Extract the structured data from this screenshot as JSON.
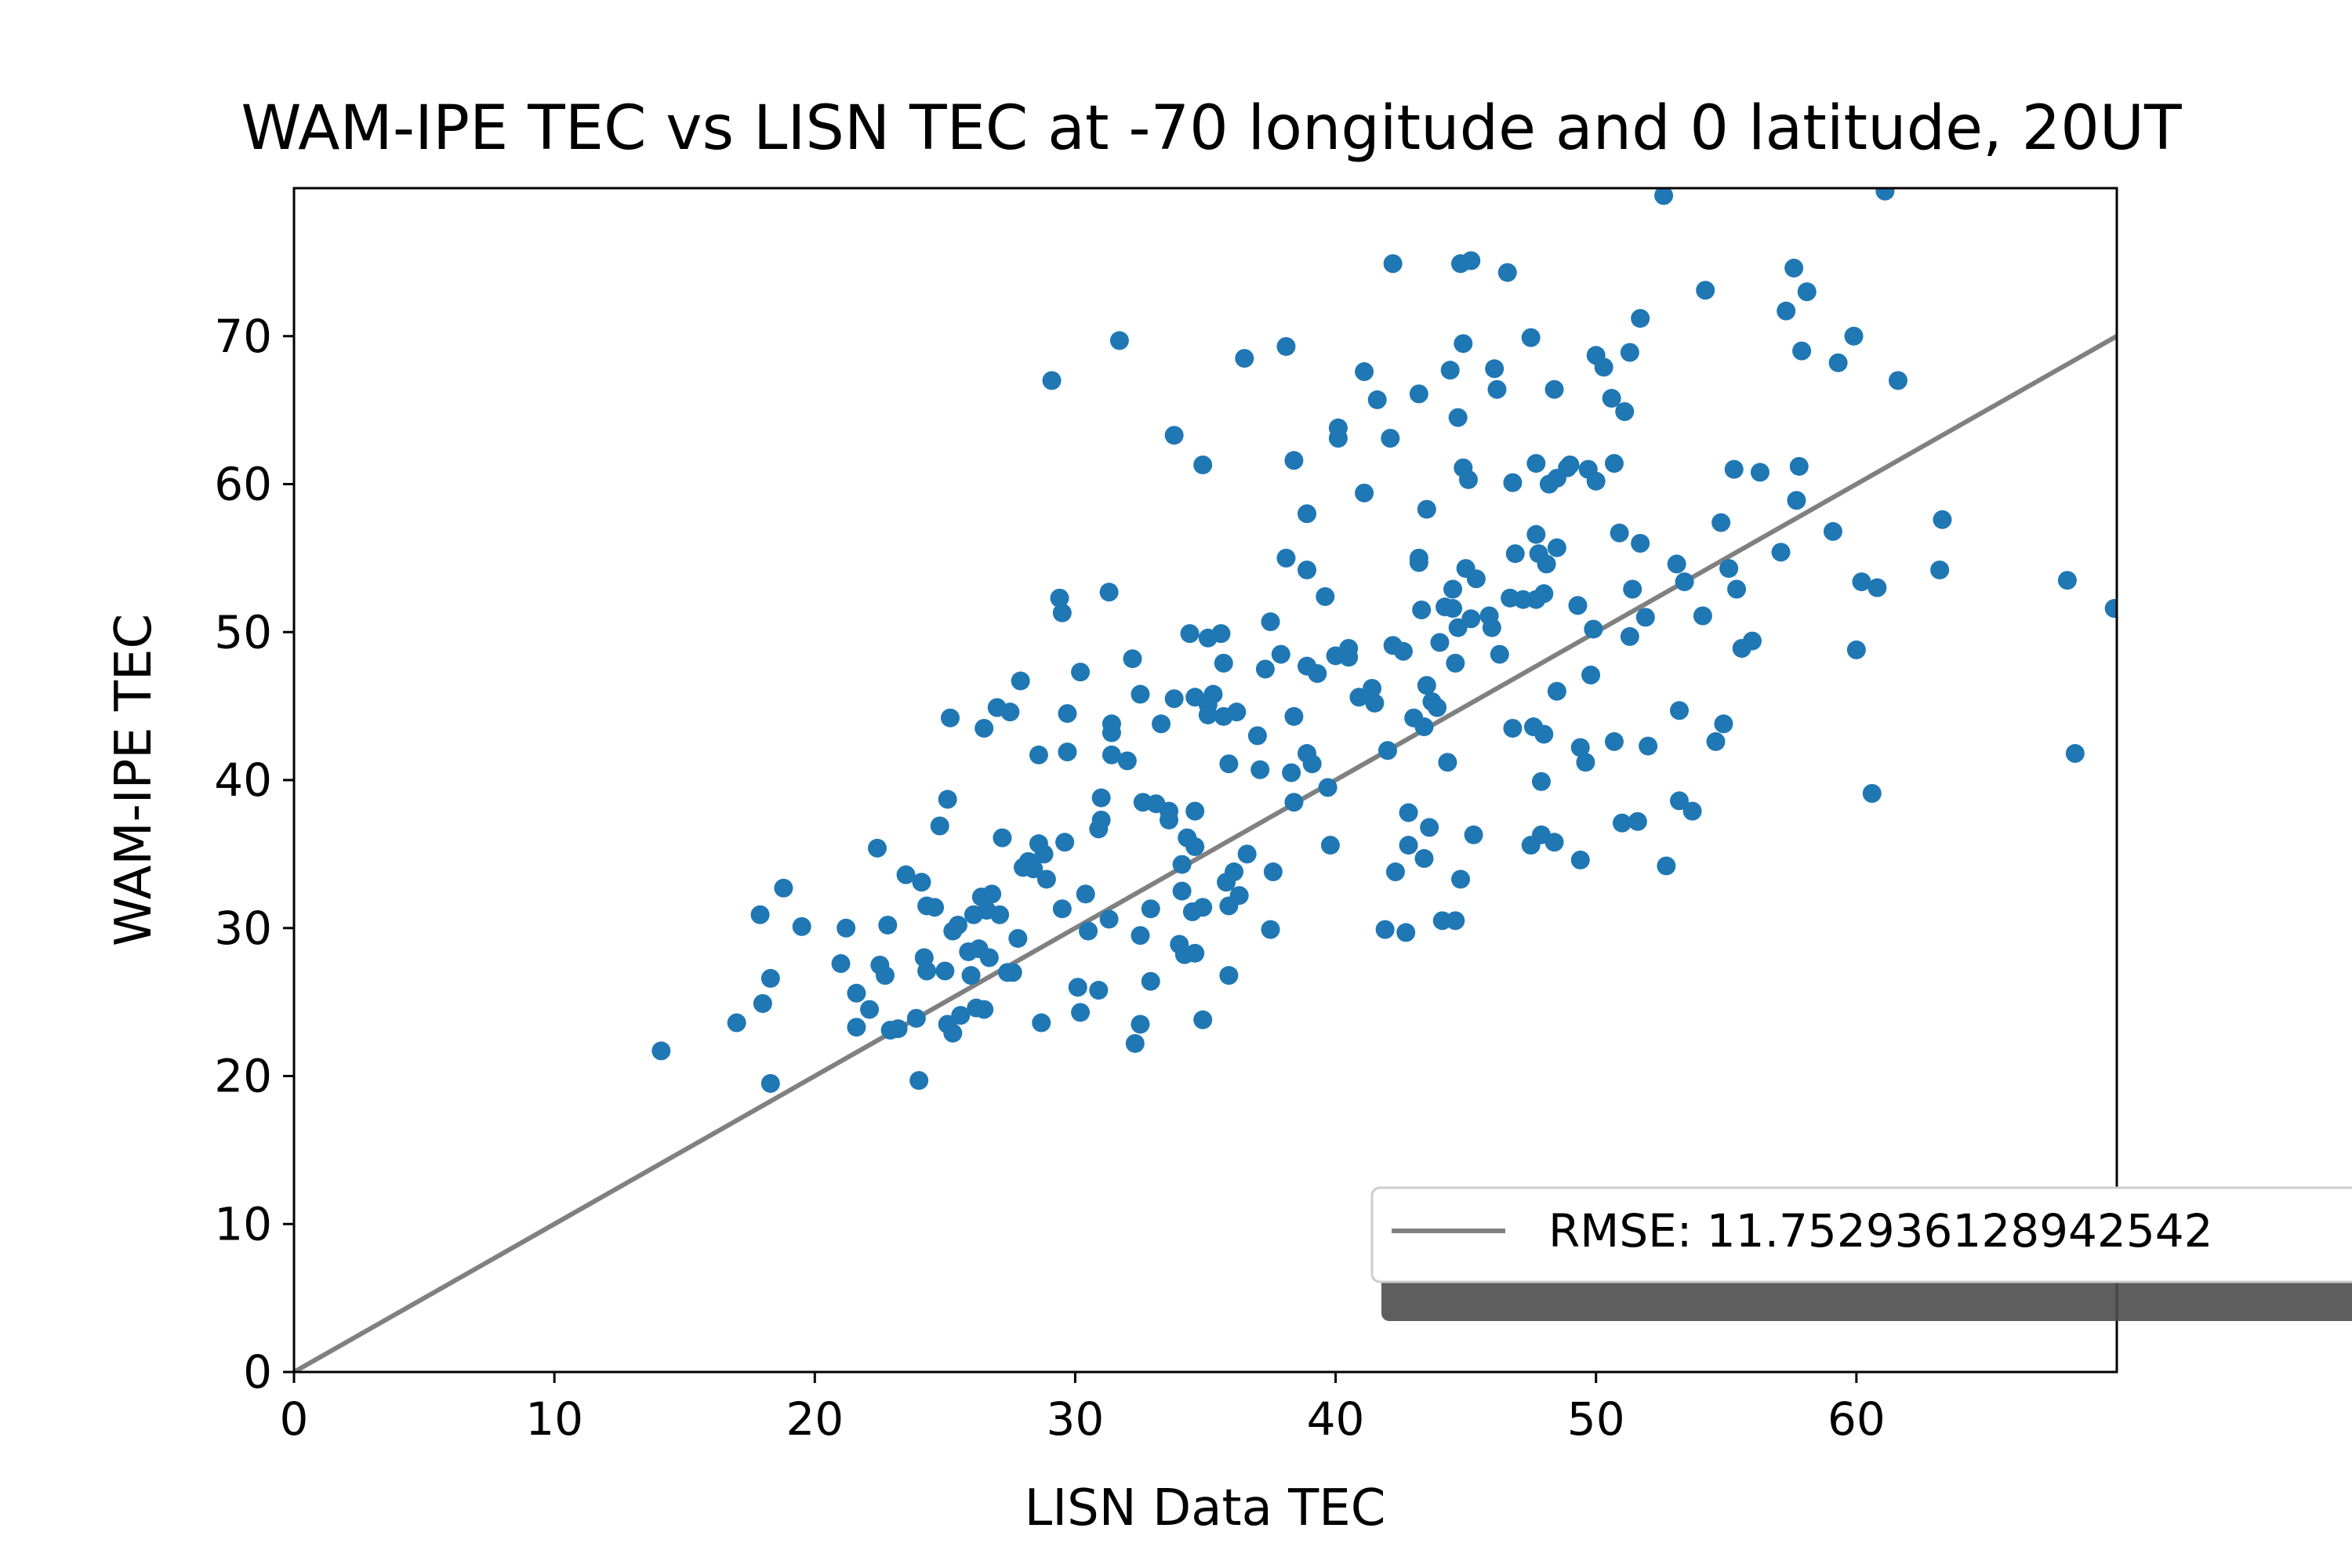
{
  "chart_data": {
    "type": "scatter",
    "title": "WAM-IPE TEC vs LISN TEC at -70 longitude and 0 latitude, 20UT",
    "xlabel": "LISN Data TEC",
    "ylabel": "WAM-IPE TEC",
    "xlim": [
      0,
      70
    ],
    "ylim": [
      0,
      80
    ],
    "xticks": [
      "0",
      "10",
      "20",
      "30",
      "40",
      "50",
      "60"
    ],
    "yticks": [
      "0",
      "10",
      "20",
      "30",
      "40",
      "50",
      "60",
      "70"
    ],
    "grid": false,
    "legend_position": "lower-right",
    "legend": {
      "label": "RMSE: 11.752936128942542"
    },
    "reference_line": {
      "name": "RMSE: 11.752936128942542",
      "x": [
        0,
        70
      ],
      "y": [
        0,
        70
      ],
      "color": "#808080"
    },
    "point_color": "#1f77b4",
    "points": [
      [
        14.1,
        21.7
      ],
      [
        17.0,
        23.6
      ],
      [
        17.9,
        30.9
      ],
      [
        18.0,
        24.9
      ],
      [
        18.3,
        26.6
      ],
      [
        18.3,
        19.5
      ],
      [
        18.8,
        32.7
      ],
      [
        19.5,
        30.1
      ],
      [
        21.0,
        27.6
      ],
      [
        21.2,
        30.0
      ],
      [
        21.6,
        25.6
      ],
      [
        21.6,
        23.3
      ],
      [
        22.1,
        24.5
      ],
      [
        22.4,
        35.4
      ],
      [
        22.5,
        27.5
      ],
      [
        22.7,
        26.8
      ],
      [
        22.8,
        30.2
      ],
      [
        22.9,
        23.1
      ],
      [
        23.2,
        23.2
      ],
      [
        23.5,
        33.6
      ],
      [
        23.9,
        23.9
      ],
      [
        24.0,
        19.7
      ],
      [
        24.1,
        33.1
      ],
      [
        24.2,
        28.0
      ],
      [
        24.3,
        27.1
      ],
      [
        24.3,
        31.5
      ],
      [
        24.6,
        31.4
      ],
      [
        24.8,
        36.9
      ],
      [
        25.0,
        27.1
      ],
      [
        25.1,
        23.5
      ],
      [
        25.1,
        38.7
      ],
      [
        25.2,
        44.2
      ],
      [
        25.3,
        29.8
      ],
      [
        25.3,
        22.9
      ],
      [
        25.5,
        30.2
      ],
      [
        25.6,
        24.1
      ],
      [
        25.9,
        28.4
      ],
      [
        26.0,
        26.8
      ],
      [
        26.1,
        30.9
      ],
      [
        26.2,
        24.6
      ],
      [
        26.3,
        28.6
      ],
      [
        26.4,
        32.1
      ],
      [
        26.5,
        24.5
      ],
      [
        26.5,
        43.5
      ],
      [
        26.6,
        31.2
      ],
      [
        26.7,
        28.0
      ],
      [
        26.8,
        32.3
      ],
      [
        27.0,
        44.9
      ],
      [
        27.1,
        30.9
      ],
      [
        27.2,
        36.1
      ],
      [
        27.4,
        27.0
      ],
      [
        27.5,
        44.6
      ],
      [
        27.6,
        27.0
      ],
      [
        27.8,
        29.3
      ],
      [
        27.9,
        46.7
      ],
      [
        28.0,
        34.1
      ],
      [
        28.2,
        34.5
      ],
      [
        28.4,
        34.0
      ],
      [
        28.6,
        35.7
      ],
      [
        28.6,
        41.7
      ],
      [
        28.7,
        23.6
      ],
      [
        28.8,
        35.0
      ],
      [
        28.9,
        33.3
      ],
      [
        29.1,
        67.0
      ],
      [
        29.4,
        52.3
      ],
      [
        29.5,
        51.3
      ],
      [
        29.5,
        31.3
      ],
      [
        29.6,
        35.8
      ],
      [
        29.7,
        41.9
      ],
      [
        29.7,
        44.5
      ],
      [
        30.1,
        26.0
      ],
      [
        30.2,
        47.3
      ],
      [
        30.2,
        24.3
      ],
      [
        30.4,
        32.3
      ],
      [
        30.5,
        29.8
      ],
      [
        30.9,
        25.8
      ],
      [
        30.9,
        36.7
      ],
      [
        31.0,
        38.8
      ],
      [
        31.0,
        37.3
      ],
      [
        31.3,
        30.6
      ],
      [
        31.3,
        52.7
      ],
      [
        31.4,
        43.8
      ],
      [
        31.4,
        41.7
      ],
      [
        31.4,
        43.2
      ],
      [
        31.7,
        69.7
      ],
      [
        32.0,
        41.3
      ],
      [
        32.2,
        48.2
      ],
      [
        32.3,
        22.2
      ],
      [
        32.5,
        23.5
      ],
      [
        32.5,
        29.5
      ],
      [
        32.5,
        45.8
      ],
      [
        32.6,
        38.5
      ],
      [
        32.9,
        31.3
      ],
      [
        32.9,
        26.4
      ],
      [
        33.1,
        38.4
      ],
      [
        33.3,
        43.8
      ],
      [
        33.6,
        37.9
      ],
      [
        33.6,
        37.3
      ],
      [
        33.8,
        45.5
      ],
      [
        33.8,
        63.3
      ],
      [
        34.0,
        28.9
      ],
      [
        34.1,
        34.3
      ],
      [
        34.1,
        32.5
      ],
      [
        34.2,
        28.2
      ],
      [
        34.3,
        36.1
      ],
      [
        34.4,
        49.9
      ],
      [
        34.5,
        31.1
      ],
      [
        34.6,
        35.5
      ],
      [
        34.6,
        28.3
      ],
      [
        34.6,
        37.9
      ],
      [
        34.6,
        45.6
      ],
      [
        34.9,
        61.3
      ],
      [
        34.9,
        31.4
      ],
      [
        34.9,
        23.8
      ],
      [
        35.1,
        44.4
      ],
      [
        35.1,
        45.1
      ],
      [
        35.1,
        49.6
      ],
      [
        35.3,
        45.8
      ],
      [
        35.6,
        49.9
      ],
      [
        35.7,
        44.3
      ],
      [
        35.7,
        47.9
      ],
      [
        35.8,
        33.1
      ],
      [
        35.9,
        26.8
      ],
      [
        35.9,
        41.1
      ],
      [
        35.9,
        31.5
      ],
      [
        36.1,
        33.8
      ],
      [
        36.2,
        44.6
      ],
      [
        36.3,
        32.2
      ],
      [
        36.5,
        68.5
      ],
      [
        36.6,
        35.0
      ],
      [
        37.0,
        43.0
      ],
      [
        37.1,
        40.7
      ],
      [
        37.3,
        47.5
      ],
      [
        37.5,
        29.9
      ],
      [
        37.5,
        50.7
      ],
      [
        37.6,
        33.8
      ],
      [
        37.9,
        48.5
      ],
      [
        38.1,
        55.0
      ],
      [
        38.1,
        69.3
      ],
      [
        38.3,
        40.5
      ],
      [
        38.4,
        38.5
      ],
      [
        38.4,
        44.3
      ],
      [
        38.4,
        61.6
      ],
      [
        38.9,
        47.7
      ],
      [
        38.9,
        54.2
      ],
      [
        38.9,
        58.0
      ],
      [
        38.9,
        41.8
      ],
      [
        39.1,
        41.1
      ],
      [
        39.3,
        47.2
      ],
      [
        39.6,
        52.4
      ],
      [
        39.7,
        39.5
      ],
      [
        39.8,
        35.6
      ],
      [
        40.0,
        48.4
      ],
      [
        40.1,
        63.8
      ],
      [
        40.1,
        63.1
      ],
      [
        40.5,
        48.9
      ],
      [
        40.5,
        48.3
      ],
      [
        40.9,
        45.6
      ],
      [
        41.1,
        59.4
      ],
      [
        41.1,
        67.6
      ],
      [
        41.4,
        46.2
      ],
      [
        41.5,
        45.2
      ],
      [
        41.6,
        65.7
      ],
      [
        41.9,
        29.9
      ],
      [
        42.0,
        42.0
      ],
      [
        42.1,
        63.1
      ],
      [
        42.2,
        49.1
      ],
      [
        42.2,
        74.9
      ],
      [
        42.3,
        33.8
      ],
      [
        42.6,
        48.7
      ],
      [
        42.7,
        29.7
      ],
      [
        42.8,
        37.8
      ],
      [
        42.8,
        35.6
      ],
      [
        43.0,
        44.2
      ],
      [
        43.2,
        66.1
      ],
      [
        43.2,
        55.0
      ],
      [
        43.2,
        54.7
      ],
      [
        43.3,
        51.5
      ],
      [
        43.4,
        34.7
      ],
      [
        43.4,
        43.6
      ],
      [
        43.5,
        58.3
      ],
      [
        43.5,
        46.4
      ],
      [
        43.6,
        36.8
      ],
      [
        43.7,
        45.3
      ],
      [
        43.9,
        44.9
      ],
      [
        44.0,
        49.3
      ],
      [
        44.1,
        30.5
      ],
      [
        44.2,
        51.7
      ],
      [
        44.3,
        41.2
      ],
      [
        44.4,
        67.7
      ],
      [
        44.5,
        51.6
      ],
      [
        44.5,
        52.9
      ],
      [
        44.6,
        47.9
      ],
      [
        44.6,
        30.5
      ],
      [
        44.7,
        50.3
      ],
      [
        44.7,
        64.5
      ],
      [
        44.8,
        74.9
      ],
      [
        44.8,
        33.3
      ],
      [
        44.9,
        69.5
      ],
      [
        44.9,
        61.1
      ],
      [
        45.0,
        54.3
      ],
      [
        45.1,
        60.3
      ],
      [
        45.2,
        75.1
      ],
      [
        45.2,
        50.9
      ],
      [
        45.3,
        36.3
      ],
      [
        45.4,
        53.6
      ],
      [
        45.9,
        51.1
      ],
      [
        46.0,
        50.3
      ],
      [
        46.1,
        67.8
      ],
      [
        46.2,
        66.4
      ],
      [
        46.3,
        48.5
      ],
      [
        46.6,
        74.3
      ],
      [
        46.7,
        52.3
      ],
      [
        46.8,
        43.5
      ],
      [
        46.8,
        60.1
      ],
      [
        46.9,
        55.3
      ],
      [
        47.2,
        52.2
      ],
      [
        47.5,
        69.9
      ],
      [
        47.5,
        35.6
      ],
      [
        47.6,
        43.6
      ],
      [
        47.7,
        61.4
      ],
      [
        47.7,
        56.6
      ],
      [
        47.7,
        52.2
      ],
      [
        47.8,
        55.3
      ],
      [
        47.9,
        39.9
      ],
      [
        47.9,
        36.3
      ],
      [
        48.0,
        43.1
      ],
      [
        48.0,
        52.6
      ],
      [
        48.1,
        54.6
      ],
      [
        48.2,
        60.0
      ],
      [
        48.4,
        35.8
      ],
      [
        48.4,
        66.4
      ],
      [
        48.5,
        46.0
      ],
      [
        48.5,
        55.7
      ],
      [
        48.5,
        60.4
      ],
      [
        48.9,
        61.1
      ],
      [
        49.0,
        61.3
      ],
      [
        49.3,
        51.8
      ],
      [
        49.4,
        42.2
      ],
      [
        49.4,
        34.6
      ],
      [
        49.6,
        41.2
      ],
      [
        49.7,
        61.0
      ],
      [
        49.8,
        47.1
      ],
      [
        49.9,
        50.2
      ],
      [
        50.0,
        68.7
      ],
      [
        50.0,
        60.2
      ],
      [
        50.3,
        67.9
      ],
      [
        50.6,
        65.8
      ],
      [
        50.7,
        61.4
      ],
      [
        50.7,
        42.6
      ],
      [
        50.9,
        56.7
      ],
      [
        51.0,
        37.1
      ],
      [
        51.1,
        64.9
      ],
      [
        51.3,
        49.7
      ],
      [
        51.3,
        68.9
      ],
      [
        51.4,
        52.9
      ],
      [
        51.6,
        37.2
      ],
      [
        51.7,
        71.2
      ],
      [
        51.7,
        56.0
      ],
      [
        51.9,
        51.0
      ],
      [
        52.0,
        42.3
      ],
      [
        52.6,
        79.5
      ],
      [
        52.7,
        34.2
      ],
      [
        53.1,
        54.6
      ],
      [
        53.2,
        38.6
      ],
      [
        53.2,
        44.7
      ],
      [
        53.4,
        53.4
      ],
      [
        53.7,
        37.9
      ],
      [
        54.1,
        51.1
      ],
      [
        54.2,
        73.1
      ],
      [
        54.6,
        42.6
      ],
      [
        54.8,
        57.4
      ],
      [
        54.9,
        43.8
      ],
      [
        55.1,
        54.3
      ],
      [
        55.3,
        61.0
      ],
      [
        55.4,
        52.9
      ],
      [
        55.6,
        48.9
      ],
      [
        56.0,
        49.4
      ],
      [
        56.3,
        60.8
      ],
      [
        57.1,
        55.4
      ],
      [
        57.3,
        71.7
      ],
      [
        57.6,
        74.6
      ],
      [
        57.7,
        58.9
      ],
      [
        57.8,
        61.2
      ],
      [
        57.9,
        69.0
      ],
      [
        58.1,
        73.0
      ],
      [
        59.1,
        56.8
      ],
      [
        59.3,
        68.2
      ],
      [
        59.9,
        70.0
      ],
      [
        60.0,
        48.8
      ],
      [
        60.2,
        53.4
      ],
      [
        60.6,
        39.1
      ],
      [
        60.8,
        53.0
      ],
      [
        61.1,
        79.8
      ],
      [
        61.6,
        67.0
      ],
      [
        63.2,
        54.2
      ],
      [
        63.3,
        57.6
      ],
      [
        68.1,
        53.5
      ],
      [
        68.4,
        41.8
      ],
      [
        69.9,
        51.6
      ]
    ]
  }
}
